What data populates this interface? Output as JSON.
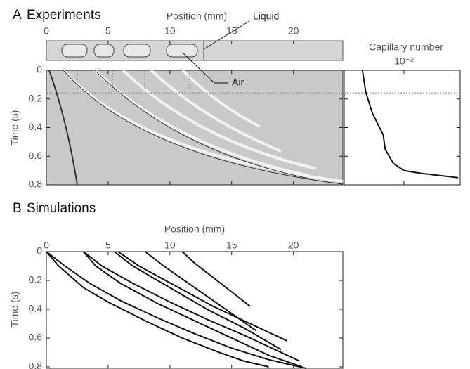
{
  "chart_data": [
    {
      "type": "kymograph",
      "panel": "A",
      "title": "Experiments",
      "xlabel": "Position (mm)",
      "ylabel": "Time (s)",
      "xlim": [
        0,
        24
      ],
      "xticks": [
        0,
        5,
        10,
        15,
        20
      ],
      "ylim": [
        0,
        0.8
      ],
      "yticks": [
        0,
        0.2,
        0.4,
        0.6,
        0.8
      ],
      "reference_time": 0.16,
      "annotations": [
        "Liquid",
        "Air"
      ]
    },
    {
      "type": "line",
      "xlabel": "Capillary number",
      "xscale": "log",
      "xlim": [
        0.0023,
        0.04
      ],
      "xticks": [
        {
          "value": 0.01,
          "label": "10⁻²"
        }
      ],
      "ylim": [
        0,
        0.8
      ],
      "yticks": [
        0,
        0.2,
        0.4,
        0.6,
        0.8
      ],
      "reference_time": 0.16,
      "series": [
        {
          "color": "#111111",
          "x": [
            0.0036,
            0.0039,
            0.0046,
            0.006,
            0.0063,
            0.0077,
            0.01,
            0.0155,
            0.038
          ],
          "values": [
            0,
            0.15,
            0.3,
            0.45,
            0.55,
            0.65,
            0.7,
            0.72,
            0.75
          ]
        }
      ]
    },
    {
      "type": "line",
      "panel": "B",
      "title": "Simulations",
      "xlabel": "Position (mm)",
      "ylabel": "Time (s)",
      "xlim": [
        0,
        24
      ],
      "xticks": [
        0,
        5,
        10,
        15,
        20
      ],
      "ylim": [
        0,
        0.81
      ],
      "yticks": [
        0,
        0.2,
        0.4,
        0.6,
        0.8
      ],
      "series": [
        {
          "color": "#111111",
          "x": [
            0,
            1,
            3,
            5,
            8,
            11,
            14,
            16,
            18
          ],
          "values": [
            0,
            0.1,
            0.25,
            0.35,
            0.48,
            0.6,
            0.7,
            0.76,
            0.8
          ]
        },
        {
          "color": "#111111",
          "x": [
            0,
            1.5,
            3.5,
            6,
            9,
            12,
            15,
            18,
            21
          ],
          "values": [
            0,
            0.1,
            0.22,
            0.34,
            0.46,
            0.57,
            0.67,
            0.75,
            0.81
          ]
        },
        {
          "color": "#111111",
          "x": [
            3,
            4,
            6,
            9,
            12,
            15,
            18,
            20.7
          ],
          "values": [
            0,
            0.1,
            0.22,
            0.36,
            0.48,
            0.6,
            0.72,
            0.8
          ]
        },
        {
          "color": "#111111",
          "x": [
            3,
            4.5,
            7,
            10,
            13,
            16,
            19,
            20.5
          ],
          "values": [
            0,
            0.1,
            0.22,
            0.35,
            0.47,
            0.58,
            0.7,
            0.76
          ]
        },
        {
          "color": "#111111",
          "x": [
            5.5,
            7,
            10,
            13,
            16,
            19
          ],
          "values": [
            0,
            0.1,
            0.25,
            0.4,
            0.53,
            0.68
          ]
        },
        {
          "color": "#111111",
          "x": [
            5.8,
            7.5,
            10.5,
            13.5,
            16.5,
            19.5
          ],
          "values": [
            0,
            0.1,
            0.24,
            0.38,
            0.5,
            0.62
          ]
        },
        {
          "color": "#111111",
          "x": [
            8,
            9.5,
            12,
            14.5,
            17
          ],
          "values": [
            0,
            0.1,
            0.25,
            0.4,
            0.55
          ]
        },
        {
          "color": "#111111",
          "x": [
            11,
            12,
            13.5,
            15,
            16.5
          ],
          "values": [
            0,
            0.08,
            0.18,
            0.28,
            0.38
          ]
        }
      ]
    }
  ]
}
